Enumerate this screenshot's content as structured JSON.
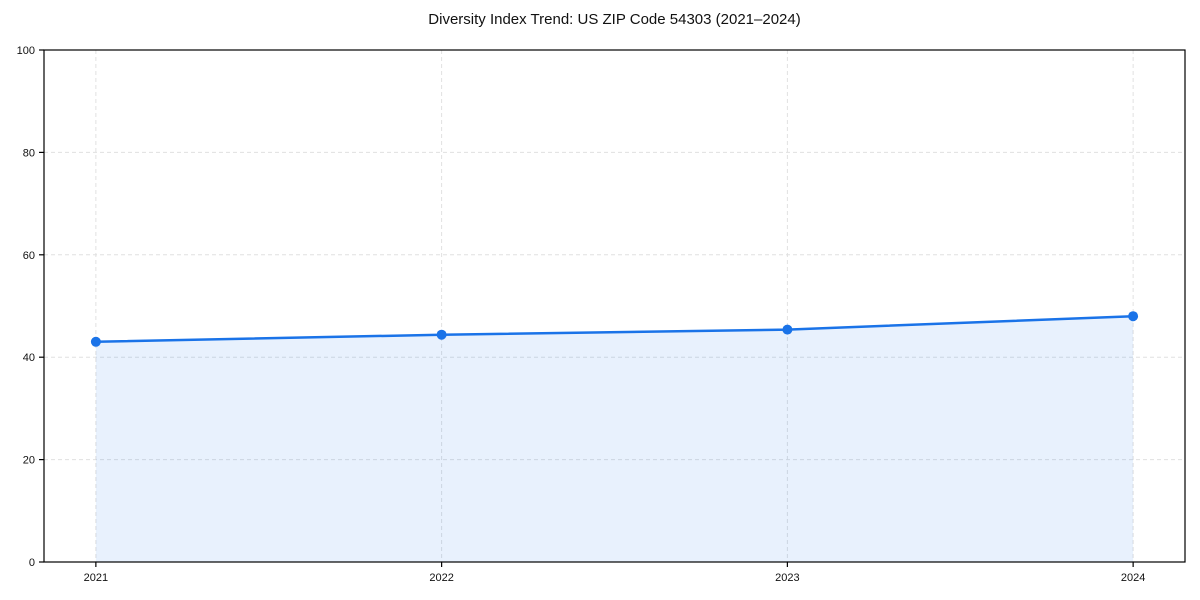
{
  "chart_data": {
    "type": "area",
    "title": "Diversity Index Trend: US ZIP Code 54303 (2021–2024)",
    "xlabel": "",
    "ylabel": "",
    "x": [
      2021,
      2022,
      2023,
      2024
    ],
    "values": [
      43,
      44.4,
      45.4,
      48
    ],
    "xticks": [
      2021,
      2022,
      2023,
      2024
    ],
    "xticklabels": [
      "2021",
      "2022",
      "2023",
      "2024"
    ],
    "yticks": [
      0,
      20,
      40,
      60,
      80,
      100
    ],
    "ylim": [
      0,
      100
    ],
    "xlim": [
      2020.85,
      2024.15
    ],
    "grid": "dashed",
    "legend_position": "none",
    "line_color": "#1a73e8",
    "marker_color": "#1a73e8",
    "fill_color": "rgba(26,115,232,0.10)",
    "grid_color": "#e0e0e0",
    "axis_color": "#000000",
    "text_color": "#111111"
  }
}
